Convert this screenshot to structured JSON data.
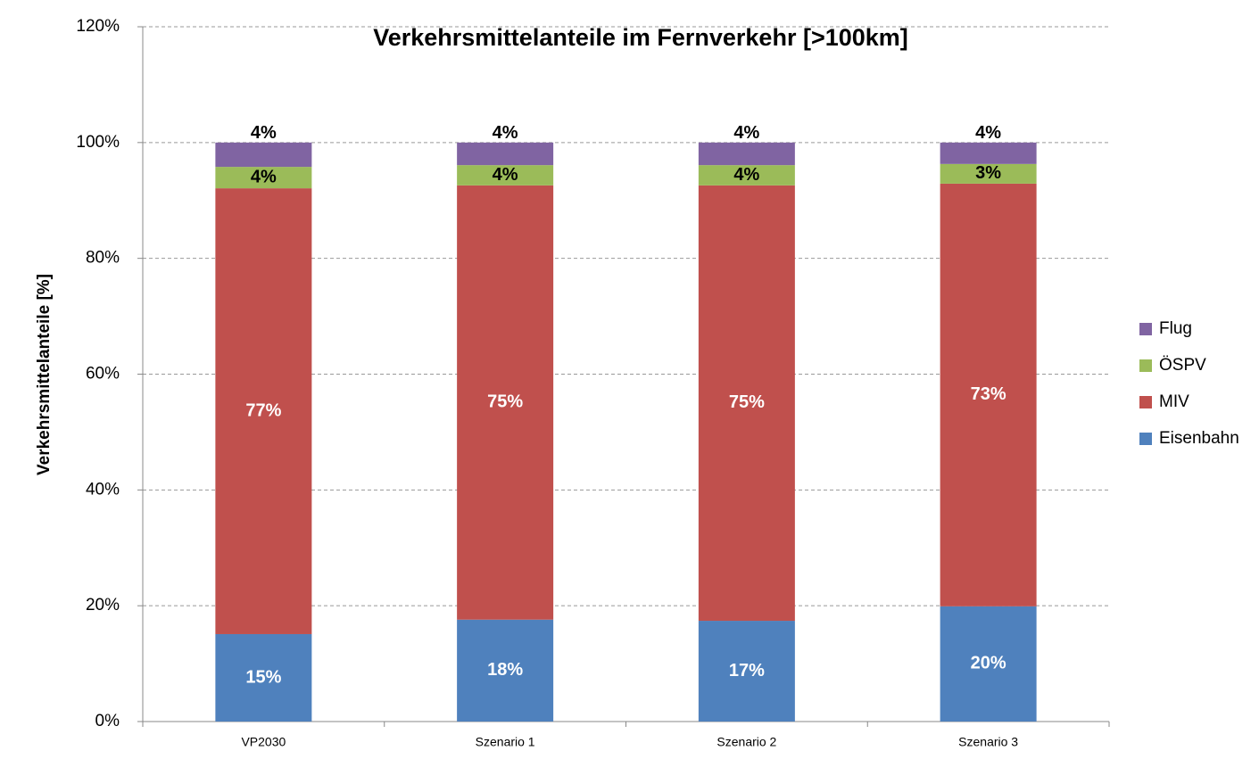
{
  "chart_data": {
    "type": "stacked_bar",
    "title": "Verkehrsmittelanteile im Fernverkehr [>100km]",
    "y_label": "Verkehrsmittelanteile [%]",
    "categories": [
      "VP2030",
      "Szenario 1",
      "Szenario 2",
      "Szenario 3"
    ],
    "series": [
      {
        "name": "Eisenbahn",
        "color": "#4f81bd",
        "values": [
          15.1,
          17.6,
          17.4,
          19.9
        ],
        "value_labels": [
          "15%",
          "18%",
          "17%",
          "20%"
        ]
      },
      {
        "name": "MIV",
        "color": "#c0504d",
        "values": [
          77.0,
          75.0,
          75.2,
          73.0
        ],
        "value_labels": [
          "77%",
          "75%",
          "75%",
          "73%"
        ]
      },
      {
        "name": "ÖSPV",
        "color": "#9bbb59",
        "values": [
          3.7,
          3.5,
          3.5,
          3.4
        ],
        "value_labels": [
          "4%",
          "4%",
          "4%",
          "3%"
        ]
      },
      {
        "name": "Flug",
        "color": "#8064a2",
        "values": [
          4.2,
          3.9,
          3.9,
          3.7
        ],
        "value_labels": [
          "4%",
          "4%",
          "4%",
          "4%"
        ]
      }
    ],
    "ylim": [
      0,
      120
    ],
    "yticks": [
      {
        "value": 0,
        "label": "0%"
      },
      {
        "value": 20,
        "label": "20%"
      },
      {
        "value": 40,
        "label": "40%"
      },
      {
        "value": 60,
        "label": "60%"
      },
      {
        "value": 80,
        "label": "80%"
      },
      {
        "value": 100,
        "label": "100%"
      },
      {
        "value": 120,
        "label": "120%"
      }
    ],
    "grid": true,
    "legend": "right"
  }
}
